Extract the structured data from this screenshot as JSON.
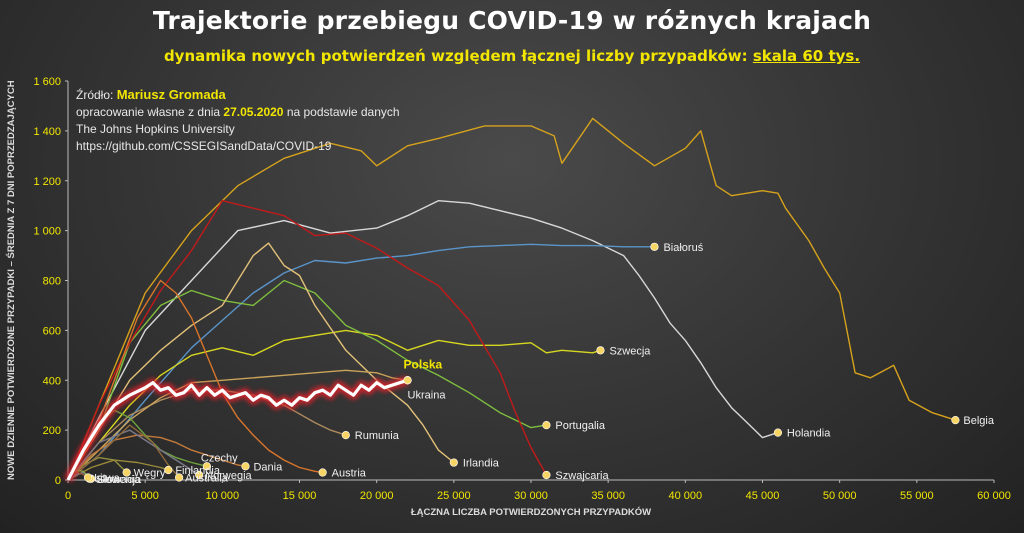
{
  "title": "Trajektorie przebiegu COVID-19 w różnych krajach",
  "subtitle_main": "dynamika nowych potwierdzeń względem łącznej liczby przypadków: ",
  "subtitle_scale": "skala 60 tys.",
  "source": {
    "label": "Źródło: ",
    "author": "Mariusz Gromada",
    "line2_pre": "opracowanie własne z dnia ",
    "date": "27.05.2020",
    "line2_post": " na podstawie danych",
    "line3": "The Johns Hopkins University",
    "line4": "https://github.com/CSSEGISandData/COVID-19"
  },
  "chart_data": {
    "type": "line",
    "title": "Trajektorie przebiegu COVID-19 w różnych krajach",
    "xlabel": "ŁĄCZNA LICZBA POTWIERDZONYCH PRZYPADKÓW",
    "ylabel": "NOWE DZIENNE POTWIERDZONE PRZYPADKI – ŚREDNIA Z 7 DNI POPRZEDZAJĄCYCH",
    "xlim": [
      0,
      60000
    ],
    "ylim": [
      0,
      1600
    ],
    "x_ticks": [
      0,
      5000,
      10000,
      15000,
      20000,
      25000,
      30000,
      35000,
      40000,
      45000,
      50000,
      55000,
      60000
    ],
    "x_tick_labels": [
      "0",
      "5 000",
      "10 000",
      "15 000",
      "20 000",
      "25 000",
      "30 000",
      "35 000",
      "40 000",
      "45 000",
      "50 000",
      "55 000",
      "60 000"
    ],
    "y_ticks": [
      0,
      200,
      400,
      600,
      800,
      1000,
      1200,
      1400,
      1600
    ],
    "y_tick_labels": [
      "0",
      "200",
      "400",
      "600",
      "800",
      "1 000",
      "1 200",
      "1 400",
      "1 600"
    ],
    "grid": false,
    "colors": {
      "axis_text": "#f2e600",
      "highlight": "#ffffff",
      "highlight_glow": "#e0202a",
      "marker": "#f7d564"
    },
    "series": [
      {
        "name": "Belgia",
        "color": "#d6a21c",
        "label_dx": 8,
        "label_dy": 0,
        "x": [
          0,
          2000,
          5000,
          8000,
          11000,
          14000,
          17000,
          19000,
          20000,
          22000,
          24000,
          27000,
          30000,
          31500,
          32000,
          34000,
          36000,
          38000,
          40000,
          41000,
          42000,
          43000,
          45000,
          46000,
          46500,
          48000,
          49000,
          50000,
          51000,
          52000,
          53500,
          54500,
          56000,
          57500
        ],
        "y": [
          0,
          300,
          750,
          1000,
          1180,
          1290,
          1350,
          1320,
          1260,
          1340,
          1370,
          1420,
          1420,
          1380,
          1270,
          1450,
          1350,
          1260,
          1330,
          1400,
          1180,
          1140,
          1160,
          1150,
          1090,
          960,
          850,
          750,
          430,
          410,
          460,
          320,
          270,
          240
        ]
      },
      {
        "name": "Holandia",
        "color": "#d8d8d8",
        "label_dx": 9,
        "label_dy": 0,
        "x": [
          0,
          2000,
          5000,
          8000,
          11000,
          14000,
          17000,
          20000,
          22000,
          24000,
          26000,
          28000,
          30000,
          32000,
          34000,
          36000,
          37000,
          38000,
          39000,
          40000,
          41000,
          42000,
          43000,
          44000,
          45000,
          46000
        ],
        "y": [
          0,
          250,
          600,
          800,
          1000,
          1040,
          990,
          1010,
          1060,
          1120,
          1110,
          1080,
          1050,
          1010,
          960,
          900,
          820,
          730,
          630,
          560,
          470,
          370,
          290,
          230,
          170,
          190
        ]
      },
      {
        "name": "Białoruś",
        "color": "#5a94c9",
        "label_dx": 9,
        "label_dy": 0,
        "x": [
          0,
          2000,
          5000,
          8000,
          10000,
          12000,
          14000,
          16000,
          18000,
          20000,
          22000,
          24000,
          26000,
          28000,
          30000,
          32000,
          34000,
          36000,
          38000
        ],
        "y": [
          0,
          100,
          320,
          530,
          640,
          750,
          830,
          880,
          870,
          890,
          900,
          920,
          935,
          940,
          945,
          940,
          940,
          935,
          935
        ]
      },
      {
        "name": "Szwecja",
        "color": "#d7d720",
        "label_dx": 9,
        "label_dy": 0,
        "x": [
          0,
          2000,
          4000,
          6000,
          8000,
          10000,
          12000,
          14000,
          16000,
          18000,
          20000,
          21000,
          22000,
          24000,
          26000,
          28000,
          30000,
          31000,
          32000,
          34000,
          34500
        ],
        "y": [
          0,
          150,
          300,
          420,
          500,
          530,
          500,
          560,
          580,
          600,
          580,
          550,
          520,
          560,
          540,
          540,
          550,
          510,
          520,
          510,
          520
        ]
      },
      {
        "name": "Portugalia",
        "color": "#7fbf3f",
        "label_dx": 9,
        "label_dy": 0,
        "x": [
          0,
          2000,
          4000,
          6000,
          8000,
          10000,
          12000,
          14000,
          16000,
          18000,
          20000,
          22000,
          24000,
          26000,
          28000,
          30000,
          31000
        ],
        "y": [
          0,
          200,
          550,
          700,
          760,
          720,
          700,
          800,
          750,
          620,
          560,
          480,
          420,
          350,
          270,
          210,
          220
        ]
      },
      {
        "name": "Szwajcaria",
        "color": "#c21a1a",
        "label_dx": 9,
        "label_dy": 0,
        "x": [
          0,
          2000,
          4000,
          6000,
          8000,
          10000,
          12000,
          14000,
          16000,
          18000,
          20000,
          22000,
          24000,
          26000,
          28000,
          29000,
          30000,
          31000
        ],
        "y": [
          0,
          300,
          550,
          760,
          920,
          1120,
          1090,
          1060,
          980,
          990,
          930,
          850,
          780,
          640,
          430,
          270,
          130,
          20
        ]
      },
      {
        "name": "Irlandia",
        "color": "#e2c078",
        "label_dx": 9,
        "label_dy": 0,
        "x": [
          0,
          2000,
          4000,
          6000,
          8000,
          10000,
          12000,
          13000,
          14000,
          15000,
          16000,
          18000,
          20000,
          22000,
          23000,
          24000,
          25000
        ],
        "y": [
          0,
          200,
          400,
          520,
          620,
          700,
          900,
          950,
          860,
          820,
          700,
          520,
          400,
          300,
          220,
          120,
          70
        ]
      },
      {
        "name": "Rumunia",
        "color": "#ad8a5f",
        "label_dx": 9,
        "label_dy": 0,
        "x": [
          0,
          2000,
          4000,
          6000,
          8000,
          10000,
          12000,
          14000,
          16000,
          17000,
          18000
        ],
        "y": [
          0,
          150,
          260,
          320,
          360,
          360,
          340,
          300,
          230,
          200,
          180
        ]
      },
      {
        "name": "Ukraina",
        "color": "#c9a35a",
        "label_dx": 0,
        "label_dy": 14,
        "x": [
          0,
          2000,
          4000,
          6000,
          8000,
          10000,
          12000,
          14000,
          16000,
          18000,
          20000,
          21000,
          22000
        ],
        "y": [
          0,
          120,
          240,
          330,
          390,
          400,
          410,
          420,
          430,
          440,
          430,
          410,
          400
        ]
      },
      {
        "name": "Austria",
        "color": "#d8742a",
        "label_dx": 9,
        "label_dy": 0,
        "x": [
          0,
          1500,
          3000,
          4500,
          6000,
          7000,
          8000,
          9000,
          10000,
          11000,
          12000,
          13000,
          14000,
          15000,
          16000,
          16500
        ],
        "y": [
          0,
          150,
          400,
          650,
          800,
          750,
          650,
          500,
          350,
          250,
          180,
          120,
          80,
          50,
          35,
          30
        ]
      },
      {
        "name": "Dania",
        "color": "#c27a3a",
        "label_dx": 8,
        "label_dy": 0,
        "x": [
          0,
          1500,
          3000,
          4500,
          6000,
          7000,
          8000,
          9000,
          10000,
          11000,
          11500
        ],
        "y": [
          0,
          100,
          160,
          180,
          170,
          150,
          120,
          100,
          80,
          60,
          55
        ]
      },
      {
        "name": "Czechy",
        "color": "#6fa23f",
        "label_dx": -6,
        "label_dy": -9,
        "x": [
          0,
          1000,
          2000,
          3000,
          4000,
          5000,
          6000,
          7000,
          8000,
          9000
        ],
        "y": [
          0,
          120,
          220,
          280,
          250,
          180,
          120,
          90,
          70,
          55
        ]
      },
      {
        "name": "Węgry",
        "color": "#8f8f3f",
        "label_dx": 7,
        "label_dy": 0,
        "x": [
          0,
          1000,
          2000,
          3000,
          3800
        ],
        "y": [
          0,
          60,
          90,
          80,
          30
        ]
      },
      {
        "name": "Finlandia",
        "color": "#9a8a3a",
        "label_dx": 7,
        "label_dy": 0,
        "x": [
          0,
          1500,
          3000,
          4500,
          6000,
          6500
        ],
        "y": [
          0,
          50,
          80,
          70,
          50,
          40
        ]
      },
      {
        "name": "Norwegia",
        "color": "#7a7a8a",
        "label_dx": 6,
        "label_dy": 0,
        "x": [
          0,
          2000,
          4000,
          6000,
          7500,
          8500
        ],
        "y": [
          0,
          150,
          200,
          120,
          60,
          20
        ]
      },
      {
        "name": "Australia",
        "color": "#8f6a3a",
        "label_dx": 6,
        "label_dy": 0,
        "x": [
          0,
          2000,
          4000,
          5500,
          6500,
          7200
        ],
        "y": [
          0,
          100,
          220,
          150,
          60,
          10
        ]
      },
      {
        "name": "Słowacja",
        "color": "#6a7fa0",
        "label_dx": 6,
        "label_dy": 0,
        "x": [
          0,
          500,
          1000,
          1500
        ],
        "y": [
          0,
          20,
          30,
          5
        ]
      },
      {
        "name": "Słowenia",
        "color": "#8aa04a",
        "label_dx": 6,
        "label_dy": 0,
        "x": [
          0,
          500,
          1000,
          1400
        ],
        "y": [
          0,
          40,
          35,
          5
        ]
      },
      {
        "name": "Litwa",
        "color": "#a0603a",
        "label_dx": 6,
        "label_dy": 0,
        "x": [
          0,
          400,
          900,
          1300
        ],
        "y": [
          0,
          30,
          25,
          10
        ]
      },
      {
        "name": "Polska",
        "color": "#ffffff",
        "highlight": true,
        "label_dx": -4,
        "label_dy": -16,
        "x": [
          0,
          1000,
          2000,
          3000,
          4000,
          5000,
          5500,
          6000,
          6500,
          7000,
          7500,
          8000,
          8500,
          9000,
          9500,
          10000,
          10500,
          11000,
          11500,
          12000,
          12500,
          13000,
          13500,
          14000,
          14500,
          15000,
          15500,
          16000,
          16500,
          17000,
          17500,
          18000,
          18500,
          19000,
          19500,
          20000,
          20500,
          21000,
          21500,
          22000
        ],
        "y": [
          0,
          120,
          220,
          300,
          340,
          370,
          390,
          360,
          370,
          340,
          350,
          380,
          340,
          370,
          340,
          360,
          330,
          340,
          350,
          320,
          340,
          330,
          300,
          320,
          300,
          330,
          320,
          350,
          360,
          340,
          380,
          360,
          340,
          380,
          360,
          390,
          370,
          380,
          390,
          400
        ]
      }
    ]
  }
}
